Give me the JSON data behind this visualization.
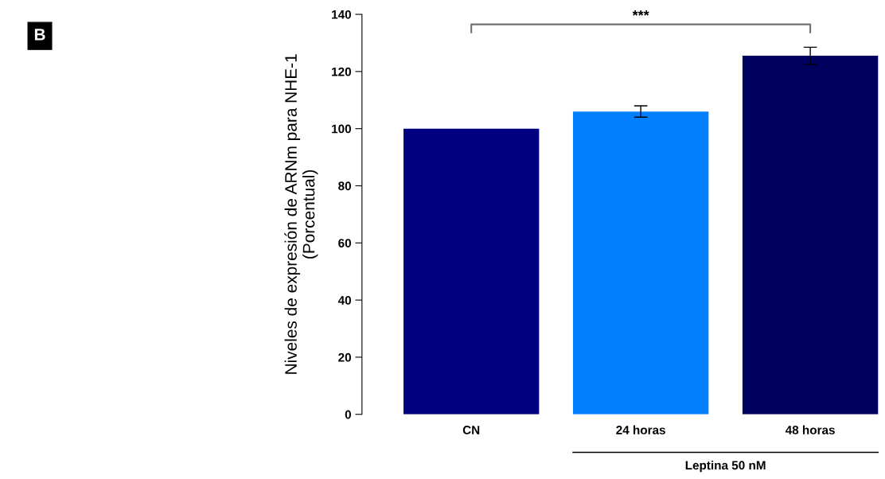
{
  "chart_data": {
    "type": "bar",
    "ylabel": "Niveles de expresión de ARNm para NHE-1\n(Porcentual)",
    "categories": [
      "CN",
      "24 horas",
      "48 horas"
    ],
    "values": [
      100,
      106,
      125.5
    ],
    "colors": [
      "#000080",
      "#0080ff",
      "#00005e"
    ],
    "errors": [
      null,
      2,
      3
    ],
    "ylim": [
      0,
      140
    ],
    "yticks": [
      0,
      20,
      40,
      60,
      80,
      100,
      120,
      140
    ],
    "grid": false,
    "annotations": [
      "B",
      "***",
      "Leptina 50 nM"
    ]
  }
}
